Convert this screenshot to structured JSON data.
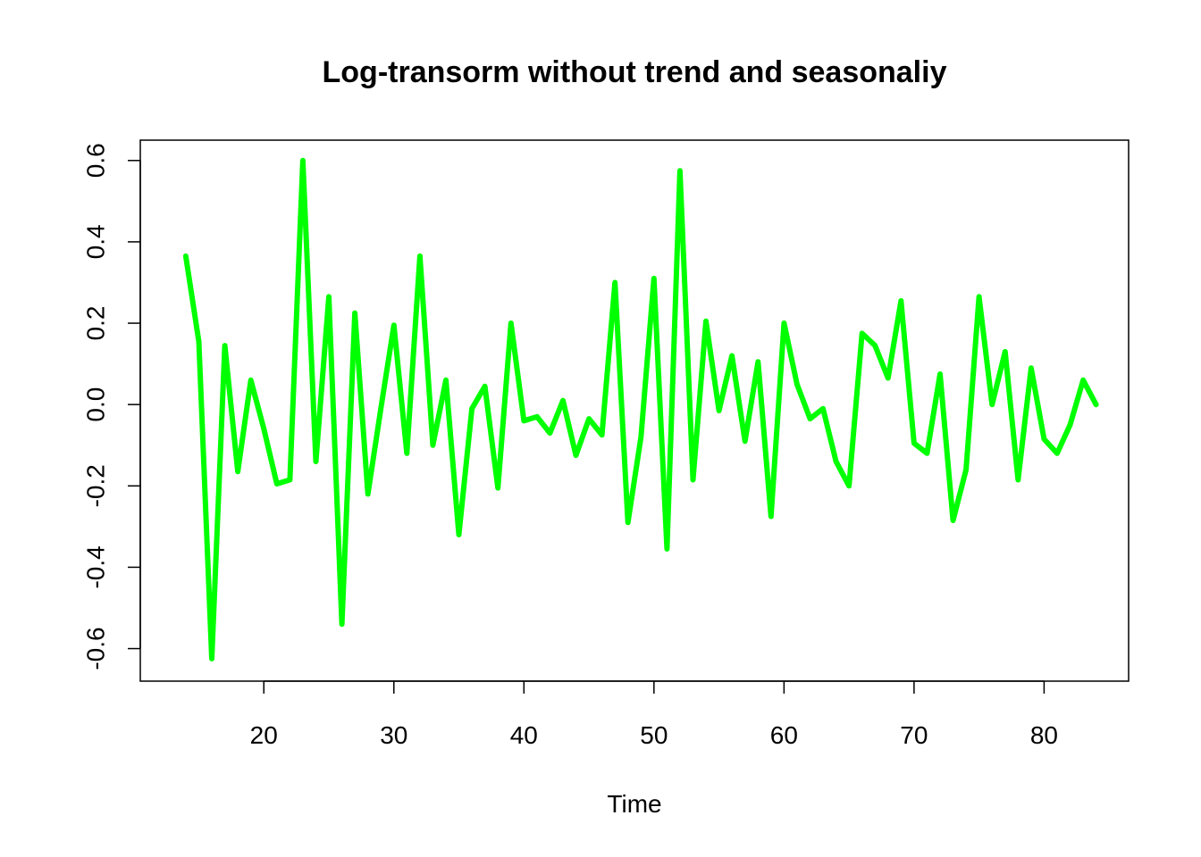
{
  "chart_data": {
    "type": "line",
    "title": "Log-transorm without trend and seasonaliy",
    "xlabel": "Time",
    "ylabel": "",
    "xlim": [
      10.5,
      86.5
    ],
    "ylim": [
      -0.68,
      0.65
    ],
    "xticks": [
      20,
      30,
      40,
      50,
      60,
      70,
      80
    ],
    "yticks": [
      -0.6,
      -0.4,
      -0.2,
      0.0,
      0.2,
      0.4,
      0.6
    ],
    "ytick_labels": [
      "-0.6",
      "-0.4",
      "-0.2",
      "0.0",
      "0.2",
      "0.4",
      "0.6"
    ],
    "grid": false,
    "color": "#00ff00",
    "x": [
      14,
      15,
      16,
      17,
      18,
      19,
      20,
      21,
      22,
      23,
      24,
      25,
      26,
      27,
      28,
      29,
      30,
      31,
      32,
      33,
      34,
      35,
      36,
      37,
      38,
      39,
      40,
      41,
      42,
      43,
      44,
      45,
      46,
      47,
      48,
      49,
      50,
      51,
      52,
      53,
      54,
      55,
      56,
      57,
      58,
      59,
      60,
      61,
      62,
      63,
      64,
      65,
      66,
      67,
      68,
      69,
      70,
      71,
      72,
      73,
      74,
      75,
      76,
      77,
      78,
      79,
      80,
      81,
      82,
      83,
      84
    ],
    "y": [
      0.365,
      0.155,
      -0.625,
      0.145,
      -0.165,
      0.06,
      -0.06,
      -0.195,
      -0.185,
      0.6,
      -0.14,
      0.265,
      -0.54,
      0.225,
      -0.22,
      -0.01,
      0.195,
      -0.12,
      0.365,
      -0.1,
      0.06,
      -0.32,
      -0.01,
      0.045,
      -0.205,
      0.2,
      -0.04,
      -0.03,
      -0.07,
      0.01,
      -0.125,
      -0.035,
      -0.075,
      0.3,
      -0.29,
      -0.08,
      0.31,
      -0.355,
      0.575,
      -0.185,
      0.205,
      -0.015,
      0.12,
      -0.09,
      0.105,
      -0.275,
      0.2,
      0.05,
      -0.035,
      -0.01,
      -0.14,
      -0.2,
      0.175,
      0.145,
      0.065,
      0.255,
      -0.095,
      -0.12,
      0.075,
      -0.285,
      -0.16,
      0.265,
      0.0,
      0.13,
      -0.185,
      0.09,
      -0.085,
      -0.12,
      -0.05,
      0.06,
      0.0
    ]
  }
}
